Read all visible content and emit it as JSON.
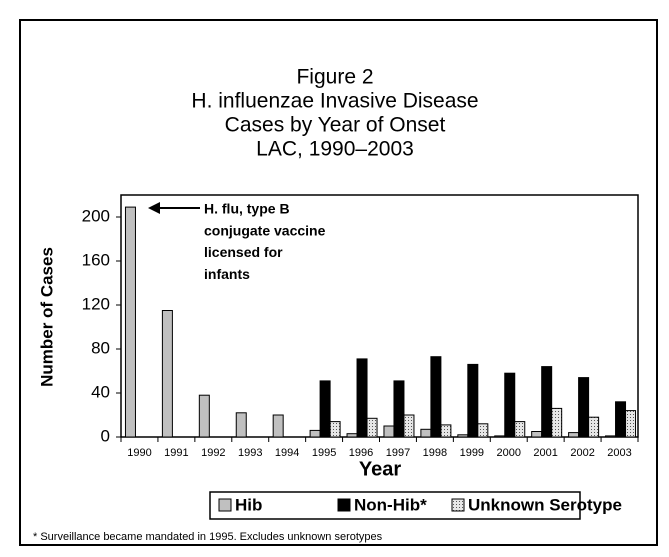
{
  "chart_data": {
    "type": "bar",
    "title": [
      "Figure 2",
      "H. influenzae Invasive Disease",
      "Cases by Year of Onset",
      "LAC, 1990–2003"
    ],
    "ylabel": "Number of Cases",
    "xlabel": "Year",
    "categories": [
      "1990",
      "1991",
      "1992",
      "1993",
      "1994",
      "1995",
      "1996",
      "1997",
      "1998",
      "1999",
      "2000",
      "2001",
      "2002",
      "2003"
    ],
    "series": [
      {
        "name": "Hib",
        "color": "#c0c0c0",
        "values": [
          209,
          115,
          38,
          22,
          20,
          6,
          3,
          10,
          7,
          2,
          1,
          5,
          4,
          1
        ]
      },
      {
        "name": "Non-Hib*",
        "color": "#000000",
        "values": [
          null,
          null,
          null,
          null,
          null,
          51,
          71,
          51,
          73,
          66,
          58,
          64,
          54,
          32
        ]
      },
      {
        "name": "Unknown Serotype",
        "color": "#d9d9d9",
        "values": [
          null,
          null,
          null,
          null,
          null,
          14,
          17,
          20,
          11,
          12,
          14,
          26,
          18,
          24
        ]
      }
    ],
    "ylim": [
      0,
      220
    ],
    "yticks": [
      0,
      40,
      80,
      120,
      160,
      200
    ],
    "annotation": [
      "H. flu, type B",
      "conjugate vaccine",
      "licensed for",
      "infants"
    ],
    "footnote": "*  Surveillance became mandated in 1995. Excludes unknown serotypes"
  }
}
